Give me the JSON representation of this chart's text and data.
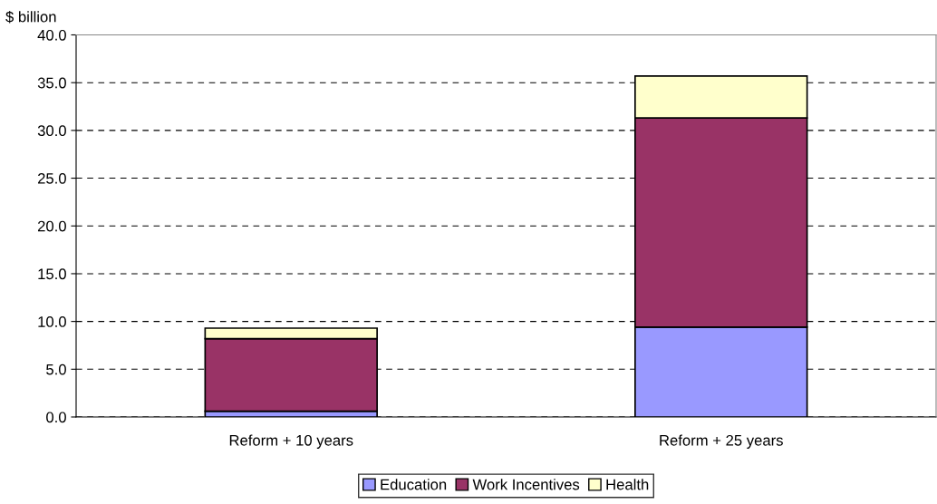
{
  "chart_data": {
    "type": "bar",
    "stacked": true,
    "ylabel": "$ billion",
    "categories": [
      "Reform + 10 years",
      "Reform + 25 years"
    ],
    "series": [
      {
        "name": "Education",
        "color": "#9999ff",
        "values": [
          0.6,
          9.4
        ]
      },
      {
        "name": "Work Incentives",
        "color": "#993366",
        "values": [
          7.6,
          21.9
        ]
      },
      {
        "name": "Health",
        "color": "#ffffcc",
        "values": [
          1.1,
          4.4
        ]
      }
    ],
    "ylim": [
      0,
      40
    ],
    "yticks": [
      {
        "value": 0,
        "label": "0.0"
      },
      {
        "value": 5,
        "label": "5.0"
      },
      {
        "value": 10,
        "label": "10.0"
      },
      {
        "value": 15,
        "label": "15.0"
      },
      {
        "value": 20,
        "label": "20.0"
      },
      {
        "value": 25,
        "label": "25.0"
      },
      {
        "value": 30,
        "label": "30.0"
      },
      {
        "value": 35,
        "label": "35.0"
      },
      {
        "value": 40,
        "label": "40.0"
      }
    ],
    "grid": "y",
    "legend": "bottom"
  }
}
